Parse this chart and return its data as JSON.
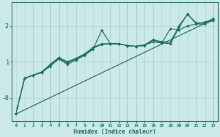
{
  "xlabel": "Humidex (Indice chaleur)",
  "xlim": [
    -0.5,
    23.5
  ],
  "ylim": [
    -0.65,
    2.65
  ],
  "xticks": [
    0,
    1,
    2,
    3,
    4,
    5,
    6,
    7,
    8,
    9,
    10,
    11,
    12,
    13,
    14,
    15,
    16,
    17,
    18,
    19,
    20,
    21,
    22,
    23
  ],
  "yticks": [
    0,
    1,
    2
  ],
  "ytick_labels": [
    "-0",
    "1",
    "2"
  ],
  "bg_color": "#cce9ea",
  "line_color": "#1b6b5e",
  "grid_color": "#aed4d6",
  "figsize": [
    3.2,
    2.0
  ],
  "dpi": 100,
  "line1_x": [
    0,
    1,
    2,
    3,
    4,
    5,
    6,
    7,
    8,
    9,
    10,
    11,
    12,
    13,
    14,
    15,
    16,
    17,
    18,
    19,
    20,
    21,
    22,
    23
  ],
  "line1_y": [
    -0.45,
    0.54,
    0.63,
    0.7,
    0.88,
    1.08,
    0.93,
    1.05,
    1.18,
    1.35,
    1.88,
    1.5,
    1.5,
    1.45,
    1.43,
    1.45,
    1.6,
    1.53,
    1.5,
    1.95,
    2.33,
    2.05,
    2.05,
    2.15
  ],
  "line2_x": [
    0,
    1,
    2,
    3,
    4,
    5,
    6,
    7,
    8,
    9,
    10,
    11,
    12,
    13,
    14,
    15,
    16,
    17,
    18,
    19,
    20,
    21,
    22,
    23
  ],
  "line2_y": [
    -0.45,
    0.54,
    0.63,
    0.7,
    0.9,
    1.1,
    0.97,
    1.08,
    1.2,
    1.38,
    1.48,
    1.5,
    1.5,
    1.45,
    1.43,
    1.47,
    1.55,
    1.52,
    1.92,
    1.88,
    2.0,
    2.05,
    2.1,
    2.18
  ],
  "line3_x": [
    0,
    1,
    2,
    3,
    4,
    5,
    6,
    7,
    8,
    9,
    10,
    11,
    12,
    13,
    14,
    15,
    16,
    17,
    18,
    19,
    20,
    21,
    22,
    23
  ],
  "line3_y": [
    -0.45,
    0.54,
    0.63,
    0.72,
    0.93,
    1.12,
    1.0,
    1.1,
    1.22,
    1.4,
    1.5,
    1.5,
    1.5,
    1.45,
    1.43,
    1.47,
    1.62,
    1.55,
    1.55,
    2.0,
    2.32,
    2.08,
    2.08,
    2.2
  ],
  "trend_x": [
    0,
    23
  ],
  "trend_y": [
    -0.45,
    2.18
  ]
}
